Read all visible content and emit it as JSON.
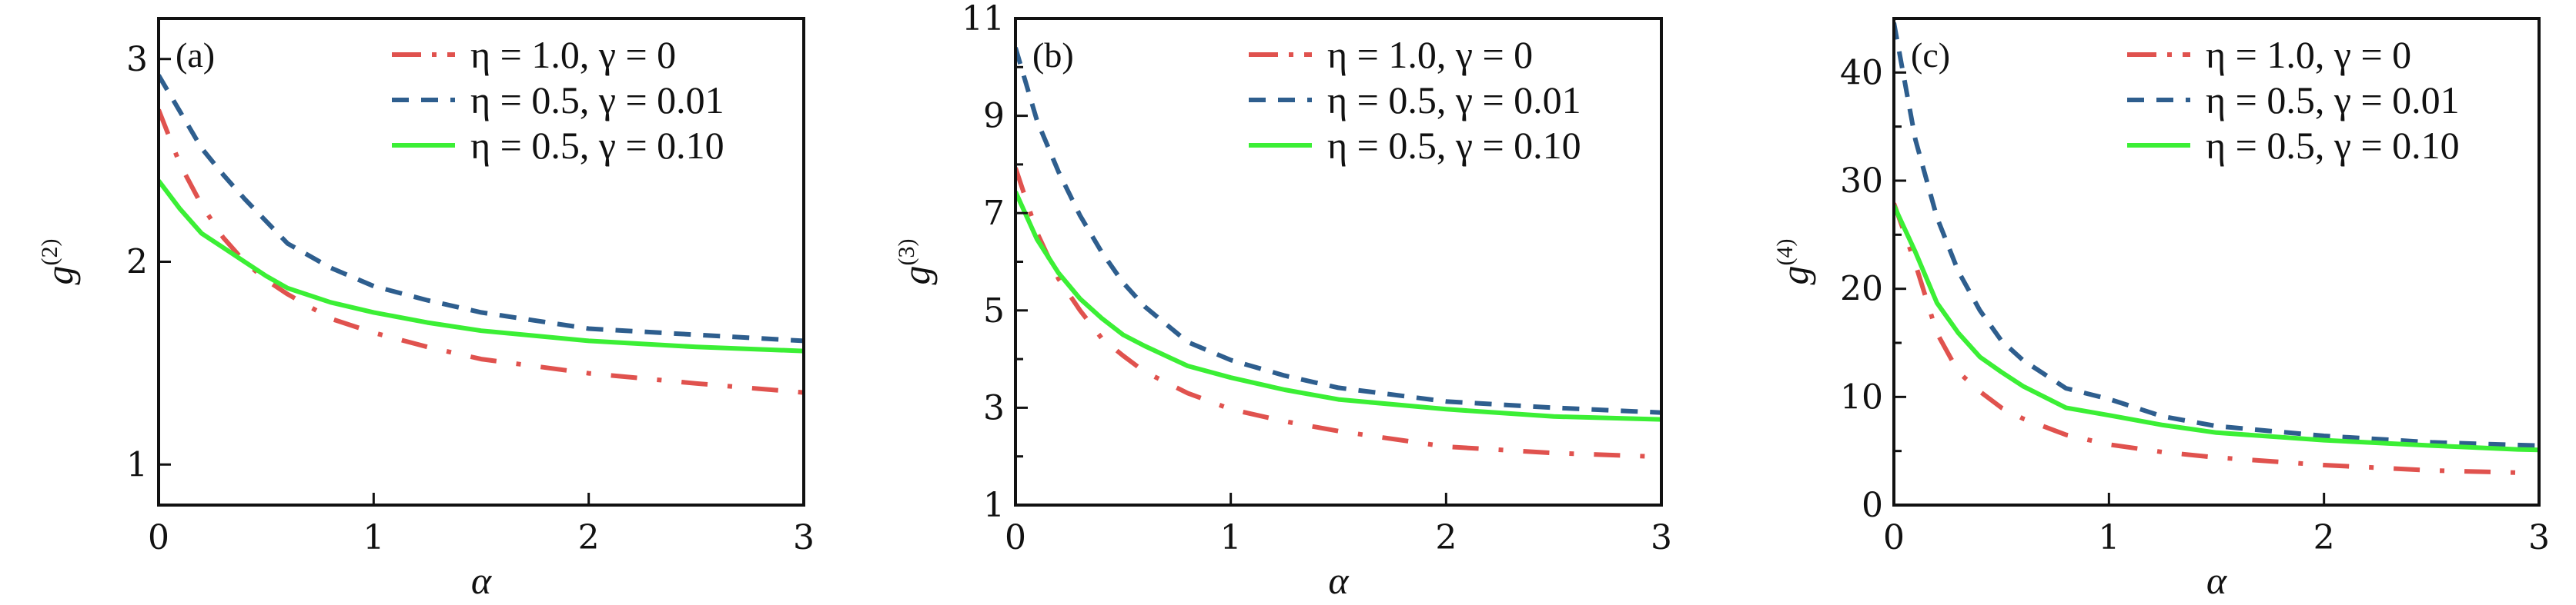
{
  "colors": {
    "red": "#e0524e",
    "blue": "#2e5e8e",
    "green": "#3bef35",
    "axis": "#111111"
  },
  "chart_data": [
    {
      "type": "line",
      "panel_label": "(a)",
      "xlabel": "α",
      "ylabel": "g",
      "ylabel_sup": "(2)",
      "xlim": [
        0,
        3
      ],
      "ylim": [
        0.8,
        3.2
      ],
      "xticks": [
        0,
        1,
        2,
        3
      ],
      "yticks": [
        1,
        2,
        3
      ],
      "yminor": [],
      "legend_position": "top-right",
      "x": [
        0,
        0.1,
        0.2,
        0.3,
        0.4,
        0.5,
        0.6,
        0.8,
        1.0,
        1.25,
        1.5,
        2.0,
        2.5,
        3.0
      ],
      "series": [
        {
          "name": "η = 1.0,  γ = 0",
          "style": "dashdot",
          "color": "red",
          "values": [
            2.75,
            2.48,
            2.28,
            2.12,
            2.0,
            1.91,
            1.84,
            1.72,
            1.65,
            1.58,
            1.52,
            1.45,
            1.4,
            1.355
          ]
        },
        {
          "name": "η = 0.5,  γ = 0.01",
          "style": "dashed",
          "color": "blue",
          "values": [
            2.92,
            2.74,
            2.56,
            2.43,
            2.31,
            2.2,
            2.09,
            1.97,
            1.88,
            1.81,
            1.75,
            1.67,
            1.64,
            1.61
          ]
        },
        {
          "name": "η = 0.5,  γ = 0.10",
          "style": "solid",
          "color": "green",
          "values": [
            2.4,
            2.26,
            2.14,
            2.07,
            2.0,
            1.93,
            1.87,
            1.8,
            1.75,
            1.7,
            1.66,
            1.61,
            1.58,
            1.56
          ]
        }
      ]
    },
    {
      "type": "line",
      "panel_label": "(b)",
      "xlabel": "α",
      "ylabel": "g",
      "ylabel_sup": "(3)",
      "xlim": [
        0,
        3
      ],
      "ylim": [
        1,
        11
      ],
      "xticks": [
        0,
        1,
        2,
        3
      ],
      "yticks": [
        1,
        3,
        5,
        7,
        9,
        11
      ],
      "yminor": [
        2,
        4,
        6,
        8,
        10
      ],
      "legend_position": "top-right",
      "x": [
        0,
        0.1,
        0.2,
        0.3,
        0.4,
        0.5,
        0.6,
        0.8,
        1.0,
        1.25,
        1.5,
        2.0,
        2.5,
        3.0
      ],
      "series": [
        {
          "name": "η = 1.0,  γ = 0",
          "style": "dashdot",
          "color": "red",
          "values": [
            7.93,
            6.6,
            5.65,
            5.0,
            4.43,
            4.07,
            3.74,
            3.3,
            2.97,
            2.72,
            2.52,
            2.2,
            2.07,
            1.99
          ]
        },
        {
          "name": "η = 0.5,  γ = 0.01",
          "style": "dashed",
          "color": "blue",
          "values": [
            10.4,
            8.9,
            7.85,
            6.95,
            6.2,
            5.57,
            5.08,
            4.35,
            3.98,
            3.66,
            3.41,
            3.13,
            3.0,
            2.9
          ]
        },
        {
          "name": "η = 0.5,  γ = 0.10",
          "style": "solid",
          "color": "green",
          "values": [
            7.44,
            6.46,
            5.77,
            5.24,
            4.84,
            4.5,
            4.27,
            3.86,
            3.62,
            3.37,
            3.17,
            2.97,
            2.82,
            2.76
          ]
        }
      ]
    },
    {
      "type": "line",
      "panel_label": "(c)",
      "xlabel": "α",
      "ylabel": "g",
      "ylabel_sup": "(4)",
      "xlim": [
        0,
        3
      ],
      "ylim": [
        0,
        45
      ],
      "xticks": [
        0,
        1,
        2,
        3
      ],
      "yticks": [
        0,
        10,
        20,
        30,
        40
      ],
      "yminor": [
        5,
        15,
        25,
        35
      ],
      "legend_position": "top-right",
      "x": [
        0,
        0.1,
        0.2,
        0.3,
        0.4,
        0.5,
        0.6,
        0.8,
        1.0,
        1.25,
        1.5,
        2.0,
        2.5,
        2.9,
        3.0
      ],
      "series": [
        {
          "name": "η = 1.0,  γ = 0",
          "style": "dashdot",
          "color": "red",
          "values": [
            27.9,
            22.3,
            15.9,
            12.3,
            10.5,
            9.0,
            8.0,
            6.5,
            5.6,
            4.9,
            4.4,
            3.7,
            3.2,
            3.0,
            null
          ]
        },
        {
          "name": "η = 0.5,  γ = 0.01",
          "style": "dashed",
          "color": "blue",
          "values": [
            44.6,
            33.8,
            26.6,
            21.6,
            18.0,
            15.2,
            13.4,
            10.8,
            9.8,
            8.2,
            7.3,
            6.4,
            5.8,
            5.55,
            5.5
          ]
        },
        {
          "name": "η = 0.5,  γ = 0.10",
          "style": "solid",
          "color": "green",
          "values": [
            27.7,
            23.4,
            18.7,
            15.9,
            13.7,
            12.3,
            11.0,
            9.0,
            8.3,
            7.4,
            6.7,
            6.0,
            5.5,
            5.15,
            5.1
          ]
        }
      ]
    }
  ]
}
